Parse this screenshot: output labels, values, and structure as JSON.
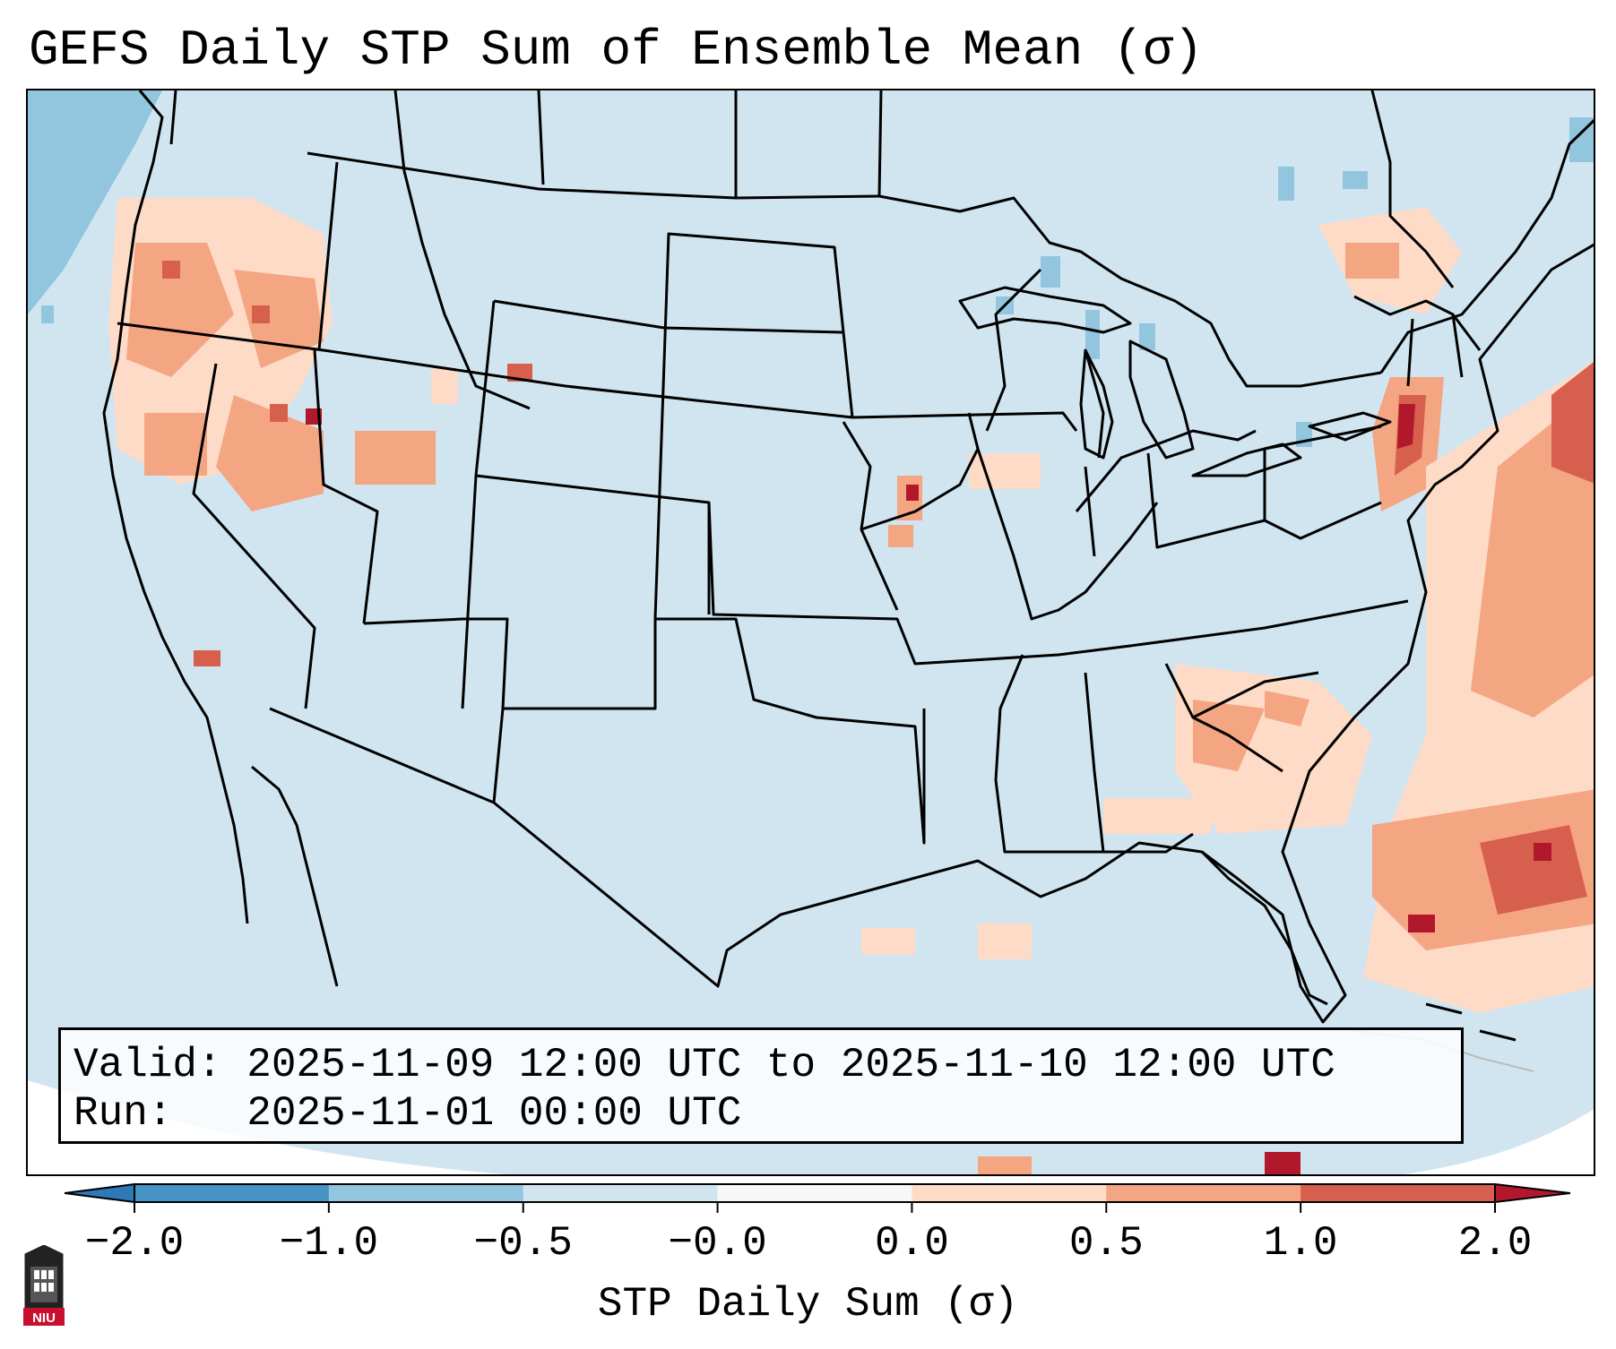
{
  "title": "GEFS Daily STP Sum of Ensemble Mean (σ)",
  "info": {
    "valid_line": "Valid: 2025-11-09 12:00 UTC to 2025-11-10 12:00 UTC",
    "run_line": "Run:   2025-11-01 00:00 UTC"
  },
  "colorbar": {
    "label": "STP Daily Sum (σ)",
    "ticks": [
      "−2.0",
      "−1.0",
      "−0.5",
      "−0.0",
      "0.0",
      "0.5",
      "1.0",
      "2.0"
    ],
    "colors": [
      "#2f79b7",
      "#4693c6",
      "#92c5de",
      "#d1e5f0",
      "#f7f7f7",
      "#fddbc7",
      "#f4a582",
      "#d6604d",
      "#b2182b"
    ],
    "extend": "both"
  },
  "map": {
    "region": "Continental United States",
    "background_color": "#d1e5f0",
    "hotspots": [
      {
        "name": "Pacific Northwest coast",
        "level": "0.5 to 1.0"
      },
      {
        "name": "Northern California / Nevada",
        "level": "0.5 to 1.0"
      },
      {
        "name": "Iowa / Missouri",
        "level": "1.0 to 2.0"
      },
      {
        "name": "Southern New England / New Jersey",
        "level": "1.0 to 2.0"
      },
      {
        "name": "Georgia / Alabama / Carolinas",
        "level": "0.5 to 1.0"
      },
      {
        "name": "Western Atlantic offshore",
        "level": "1.0 to 2.0"
      }
    ]
  },
  "logo_text": "NIU"
}
